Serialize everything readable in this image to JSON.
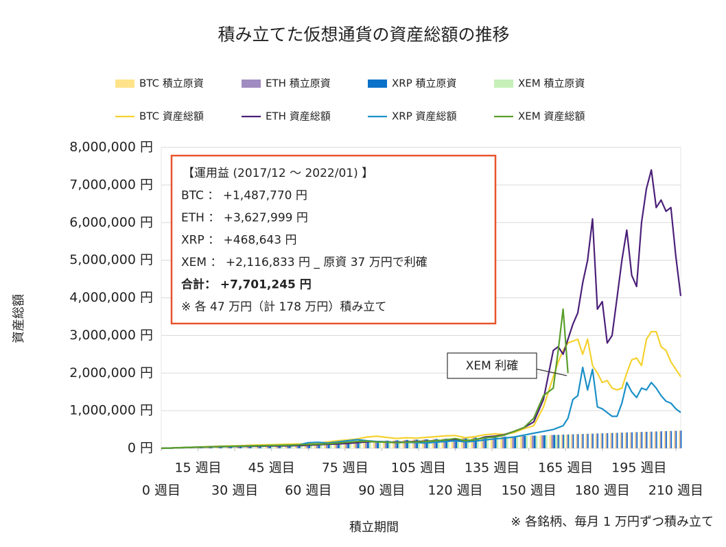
{
  "chart_data": {
    "type": "combo",
    "title": "積み立てた仮想通貨の資産総額の推移",
    "x_label": "積立期間",
    "y_label": "資産総額",
    "footnote": "※ 各銘柄、毎月 1 万円ずつ積み立て",
    "annotation_box": [
      "【運用益 (2017/12 ～ 2022/01) 】",
      "BTC ： +1,487,770 円",
      "ETH ： +3,627,999 円",
      "XRP ： +468,643 円",
      "XEM ： +2,116,833 円 _ 原資 37 万円で利確",
      "合計： +7,701,245 円",
      "※ 各 47 万円（計 178 万円）積み立て"
    ],
    "callout": "XEM 利確",
    "xlim": [
      0,
      212
    ],
    "ylim": [
      0,
      8000000
    ],
    "grid": true,
    "xticks": [
      {
        "value": 0,
        "label": "0 週目"
      },
      {
        "value": 15,
        "label": "15 週目"
      },
      {
        "value": 30,
        "label": "30 週目"
      },
      {
        "value": 45,
        "label": "45 週目"
      },
      {
        "value": 60,
        "label": "60 週目"
      },
      {
        "value": 75,
        "label": "75 週目"
      },
      {
        "value": 90,
        "label": "90 週目"
      },
      {
        "value": 105,
        "label": "105 週目"
      },
      {
        "value": 120,
        "label": "120 週目"
      },
      {
        "value": 135,
        "label": "135 週目"
      },
      {
        "value": 150,
        "label": "150 週目"
      },
      {
        "value": 165,
        "label": "165 週目"
      },
      {
        "value": 180,
        "label": "180 週目"
      },
      {
        "value": 195,
        "label": "195 週目"
      },
      {
        "value": 210,
        "label": "210 週目"
      }
    ],
    "yticks": [
      {
        "value": 0,
        "label": "0 円"
      },
      {
        "value": 1000000,
        "label": "1,000,000 円"
      },
      {
        "value": 2000000,
        "label": "2,000,000 円"
      },
      {
        "value": 3000000,
        "label": "3,000,000 円"
      },
      {
        "value": 4000000,
        "label": "4,000,000 円"
      },
      {
        "value": 5000000,
        "label": "5,000,000 円"
      },
      {
        "value": 6000000,
        "label": "6,000,000 円"
      },
      {
        "value": 7000000,
        "label": "7,000,000 円"
      },
      {
        "value": 8000000,
        "label": "8,000,000 円"
      }
    ],
    "x": [
      0,
      4,
      8,
      12,
      16,
      20,
      24,
      28,
      32,
      36,
      40,
      44,
      48,
      52,
      56,
      60,
      64,
      68,
      72,
      76,
      80,
      84,
      88,
      92,
      96,
      100,
      104,
      108,
      112,
      116,
      120,
      124,
      128,
      132,
      136,
      140,
      144,
      148,
      152,
      156,
      160,
      162,
      164,
      166,
      168,
      170,
      172,
      174,
      176,
      178,
      180,
      182,
      184,
      186,
      188,
      190,
      192,
      194,
      196,
      198,
      200,
      202,
      204,
      206,
      208,
      210,
      212
    ],
    "series": [
      {
        "name": "BTC 積立原資",
        "type": "bar",
        "color": "#ffe38a",
        "values": [
          0,
          9000,
          18000,
          27000,
          35000,
          44000,
          53000,
          62000,
          71000,
          80000,
          89000,
          98000,
          106000,
          115000,
          124000,
          133000,
          142000,
          151000,
          160000,
          168000,
          177000,
          186000,
          195000,
          204000,
          213000,
          222000,
          231000,
          239000,
          248000,
          257000,
          266000,
          275000,
          284000,
          293000,
          302000,
          310000,
          319000,
          328000,
          337000,
          346000,
          355000,
          359000,
          364000,
          368000,
          372000,
          377000,
          381000,
          386000,
          390000,
          395000,
          399000,
          403000,
          408000,
          412000,
          417000,
          421000,
          426000,
          430000,
          435000,
          439000,
          443000,
          448000,
          452000,
          457000,
          461000,
          466000,
          470000
        ]
      },
      {
        "name": "ETH 積立原資",
        "type": "bar",
        "color": "#a08cc0",
        "values": [
          0,
          9000,
          18000,
          27000,
          35000,
          44000,
          53000,
          62000,
          71000,
          80000,
          89000,
          98000,
          106000,
          115000,
          124000,
          133000,
          142000,
          151000,
          160000,
          168000,
          177000,
          186000,
          195000,
          204000,
          213000,
          222000,
          231000,
          239000,
          248000,
          257000,
          266000,
          275000,
          284000,
          293000,
          302000,
          310000,
          319000,
          328000,
          337000,
          346000,
          355000,
          359000,
          364000,
          368000,
          372000,
          377000,
          381000,
          386000,
          390000,
          395000,
          399000,
          403000,
          408000,
          412000,
          417000,
          421000,
          426000,
          430000,
          435000,
          439000,
          443000,
          448000,
          452000,
          457000,
          461000,
          466000,
          470000
        ]
      },
      {
        "name": "XRP 積立原資",
        "type": "bar",
        "color": "#0a70c8",
        "values": [
          0,
          9000,
          18000,
          27000,
          35000,
          44000,
          53000,
          62000,
          71000,
          80000,
          89000,
          98000,
          106000,
          115000,
          124000,
          133000,
          142000,
          151000,
          160000,
          168000,
          177000,
          186000,
          195000,
          204000,
          213000,
          222000,
          231000,
          239000,
          248000,
          257000,
          266000,
          275000,
          284000,
          293000,
          302000,
          310000,
          319000,
          328000,
          337000,
          346000,
          355000,
          359000,
          364000,
          368000,
          372000,
          377000,
          381000,
          386000,
          390000,
          395000,
          399000,
          403000,
          408000,
          412000,
          417000,
          421000,
          426000,
          430000,
          435000,
          439000,
          443000,
          448000,
          452000,
          457000,
          461000,
          466000,
          470000
        ]
      },
      {
        "name": "XEM 積立原資",
        "type": "bar",
        "color": "#c6f0b8",
        "values": [
          0,
          9000,
          18000,
          27000,
          35000,
          44000,
          53000,
          62000,
          71000,
          80000,
          89000,
          98000,
          106000,
          115000,
          124000,
          133000,
          142000,
          151000,
          160000,
          168000,
          177000,
          186000,
          195000,
          204000,
          213000,
          222000,
          231000,
          239000,
          248000,
          257000,
          266000,
          275000,
          284000,
          293000,
          302000,
          310000,
          319000,
          328000,
          337000,
          346000,
          355000,
          359000,
          364000,
          368000,
          null,
          null,
          null,
          null,
          null,
          null,
          null,
          null,
          null,
          null,
          null,
          null,
          null,
          null,
          null,
          null,
          null,
          null,
          null,
          null,
          null,
          null,
          null
        ]
      },
      {
        "name": "BTC 資産総額",
        "type": "line",
        "color": "#f5d12e",
        "values": [
          0,
          9000,
          19000,
          28000,
          36000,
          46000,
          55000,
          62000,
          70000,
          80000,
          90000,
          95000,
          100000,
          110000,
          115000,
          110000,
          140000,
          170000,
          200000,
          220000,
          250000,
          300000,
          320000,
          290000,
          260000,
          280000,
          270000,
          290000,
          310000,
          330000,
          340000,
          280000,
          310000,
          360000,
          380000,
          370000,
          420000,
          520000,
          600000,
          1100000,
          1900000,
          2300000,
          2600000,
          2800000,
          2850000,
          2900000,
          2500000,
          2900000,
          2200000,
          2000000,
          1750000,
          1800000,
          1600000,
          1550000,
          1600000,
          2000000,
          2350000,
          2400000,
          2200000,
          2900000,
          3100000,
          3100000,
          2700000,
          2600000,
          2300000,
          2100000,
          1900000
        ]
      },
      {
        "name": "ETH 資産総額",
        "type": "line",
        "color": "#4b1f78",
        "values": [
          0,
          8000,
          16000,
          24000,
          30000,
          36000,
          42000,
          46000,
          48000,
          52000,
          56000,
          60000,
          62000,
          66000,
          72000,
          80000,
          95000,
          105000,
          115000,
          130000,
          150000,
          170000,
          180000,
          170000,
          160000,
          170000,
          180000,
          190000,
          200000,
          210000,
          230000,
          200000,
          220000,
          300000,
          320000,
          360000,
          450000,
          550000,
          700000,
          1300000,
          2600000,
          2700000,
          2500000,
          2900000,
          3300000,
          3600000,
          4400000,
          5000000,
          6100000,
          3700000,
          3900000,
          2800000,
          3000000,
          4000000,
          5000000,
          5800000,
          4600000,
          4300000,
          6000000,
          6900000,
          7400000,
          6400000,
          6600000,
          6300000,
          6400000,
          5100000,
          4050000
        ]
      },
      {
        "name": "XRP 資産総額",
        "type": "line",
        "color": "#1a8fc8",
        "values": [
          0,
          8000,
          17000,
          25000,
          32000,
          40000,
          46000,
          50000,
          55000,
          60000,
          65000,
          70000,
          75000,
          80000,
          90000,
          150000,
          160000,
          140000,
          170000,
          200000,
          230000,
          200000,
          180000,
          170000,
          150000,
          160000,
          150000,
          140000,
          160000,
          180000,
          200000,
          170000,
          190000,
          220000,
          250000,
          270000,
          300000,
          350000,
          400000,
          450000,
          500000,
          550000,
          600000,
          800000,
          1300000,
          1400000,
          2150000,
          1550000,
          2100000,
          1100000,
          1050000,
          950000,
          850000,
          850000,
          1200000,
          1750000,
          1500000,
          1350000,
          1600000,
          1550000,
          1750000,
          1600000,
          1400000,
          1250000,
          1200000,
          1050000,
          950000
        ]
      },
      {
        "name": "XEM 資産総額",
        "type": "line",
        "color": "#5a9e2a",
        "values": [
          0,
          8000,
          17000,
          26000,
          33000,
          40000,
          48000,
          55000,
          60000,
          65000,
          70000,
          75000,
          80000,
          85000,
          95000,
          100000,
          110000,
          120000,
          140000,
          160000,
          180000,
          190000,
          170000,
          160000,
          150000,
          160000,
          170000,
          180000,
          200000,
          220000,
          260000,
          200000,
          230000,
          280000,
          300000,
          350000,
          450000,
          550000,
          800000,
          1400000,
          1600000,
          2600000,
          3700000,
          2000000,
          null,
          null,
          null,
          null,
          null,
          null,
          null,
          null,
          null,
          null,
          null,
          null,
          null,
          null,
          null,
          null,
          null,
          null,
          null,
          null,
          null,
          null,
          null
        ]
      }
    ]
  }
}
